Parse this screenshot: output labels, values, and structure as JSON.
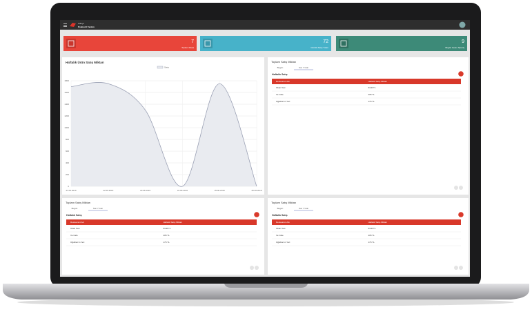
{
  "header": {
    "brand": "Adisyo",
    "subtitle": "Polatsoft Yazılım"
  },
  "cards": [
    {
      "value": "7",
      "label": "Toplam Masa"
    },
    {
      "value": "72",
      "label": "Günlük Satış Tutarı"
    },
    {
      "value": "9",
      "label": "Bugün Gelen Sipariş"
    }
  ],
  "chart_data": {
    "type": "line",
    "title": "Haftalık Ürün Satış Miktarı",
    "categories": [
      "21.06.2019",
      "22.06.2019",
      "23.06.2019",
      "24.06.2019",
      "25.06.2019",
      "26.06.2019"
    ],
    "series": [
      {
        "name": "Satış",
        "color": "#9aa0b4",
        "values": [
          1700,
          1750,
          1300,
          0,
          1750,
          0
        ]
      }
    ],
    "ylim": [
      0,
      1800
    ],
    "yticks": [
      0,
      200,
      400,
      600,
      800,
      1000,
      1200,
      1400,
      1600,
      1800
    ],
    "grid": true
  },
  "panels": [
    {
      "title": "Toplam Satış Miktarı",
      "tabs": [
        "Bugün",
        "Son 7 Gün"
      ],
      "subtitle": "Haftalık Satış",
      "columns": [
        "Restaurant Adı",
        "Haftalık Satış Miktarı"
      ],
      "rows": [
        [
          "Okan Test",
          "6146 TL"
        ],
        [
          "Ve Cafe",
          "405 TL"
        ],
        [
          "Oğulhan'ın Yeri",
          "176 TL"
        ]
      ]
    },
    {
      "title": "Toplam Satış Miktarı",
      "tabs": [
        "Bugün",
        "Son 7 Gün"
      ],
      "subtitle": "Haftalık Satış",
      "columns": [
        "Restaurant Adı",
        "Haftalık Satış Miktarı"
      ],
      "rows": [
        [
          "Okan Test",
          "6146 TL"
        ],
        [
          "Ve Cafe",
          "405 TL"
        ],
        [
          "Oğulhan'ın Yeri",
          "176 TL"
        ]
      ]
    },
    {
      "title": "Toplam Satış Miktarı",
      "tabs": [
        "Bugün",
        "Son 7 Gün"
      ],
      "subtitle": "Haftalık Satış",
      "columns": [
        "Restaurant Adı",
        "Haftalık Satış Miktarı"
      ],
      "rows": [
        [
          "Okan Test",
          "6146 TL"
        ],
        [
          "Ve Cafe",
          "405 TL"
        ],
        [
          "Oğulhan'ın Yeri",
          "176 TL"
        ]
      ]
    }
  ]
}
